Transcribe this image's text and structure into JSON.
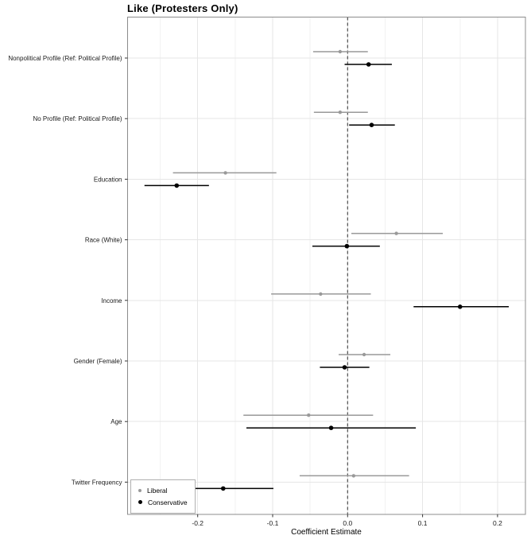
{
  "chart_data": {
    "type": "scatter",
    "subtype": "coefficient-dot-whisker-plot",
    "title": "Like (Protesters Only)",
    "xlabel": "Coefficient Estimate",
    "xlim": [
      -0.295,
      0.238
    ],
    "x_ticks": [
      -0.2,
      -0.1,
      0.0,
      0.1,
      0.2
    ],
    "x_tick_labels": [
      "-0.2",
      "-0.1",
      "0.0",
      "0.1",
      "0.2"
    ],
    "x_minor_ticks": [
      -0.25,
      -0.15,
      -0.05,
      0.05,
      0.15
    ],
    "reference_line_x": 0.0,
    "grid": "on",
    "legend_position": "inside-bottom-left",
    "categories": [
      "Nonpolitical Profile (Ref: Political Profile)",
      "No Profile (Ref: Political Profile)",
      "Education",
      "Race (White)",
      "Income",
      "Gender (Female)",
      "Age",
      "Twitter Frequency"
    ],
    "series": [
      {
        "name": "Liberal",
        "color": "#999999",
        "points": [
          {
            "category": "Nonpolitical Profile (Ref: Political Profile)",
            "estimate": -0.01,
            "ci_low": -0.046,
            "ci_high": 0.027
          },
          {
            "category": "No Profile (Ref: Political Profile)",
            "estimate": -0.01,
            "ci_low": -0.045,
            "ci_high": 0.027
          },
          {
            "category": "Education",
            "estimate": -0.163,
            "ci_low": -0.233,
            "ci_high": -0.095
          },
          {
            "category": "Race (White)",
            "estimate": 0.065,
            "ci_low": 0.005,
            "ci_high": 0.127
          },
          {
            "category": "Income",
            "estimate": -0.036,
            "ci_low": -0.102,
            "ci_high": 0.031
          },
          {
            "category": "Gender (Female)",
            "estimate": 0.022,
            "ci_low": -0.012,
            "ci_high": 0.057
          },
          {
            "category": "Age",
            "estimate": -0.052,
            "ci_low": -0.139,
            "ci_high": 0.034
          },
          {
            "category": "Twitter Frequency",
            "estimate": 0.008,
            "ci_low": -0.064,
            "ci_high": 0.082
          }
        ]
      },
      {
        "name": "Conservative",
        "color": "#000000",
        "points": [
          {
            "category": "Nonpolitical Profile (Ref: Political Profile)",
            "estimate": 0.028,
            "ci_low": -0.004,
            "ci_high": 0.059
          },
          {
            "category": "No Profile (Ref: Political Profile)",
            "estimate": 0.032,
            "ci_low": 0.002,
            "ci_high": 0.063
          },
          {
            "category": "Education",
            "estimate": -0.228,
            "ci_low": -0.271,
            "ci_high": -0.185
          },
          {
            "category": "Race (White)",
            "estimate": -0.001,
            "ci_low": -0.047,
            "ci_high": 0.043
          },
          {
            "category": "Income",
            "estimate": 0.15,
            "ci_low": 0.088,
            "ci_high": 0.215
          },
          {
            "category": "Gender (Female)",
            "estimate": -0.004,
            "ci_low": -0.037,
            "ci_high": 0.029
          },
          {
            "category": "Age",
            "estimate": -0.022,
            "ci_low": -0.135,
            "ci_high": 0.091
          },
          {
            "category": "Twitter Frequency",
            "estimate": -0.166,
            "ci_low": -0.233,
            "ci_high": -0.099
          }
        ]
      }
    ],
    "colors": {
      "panel_border": "#8c8c8c",
      "grid_major": "#e6e6e6",
      "grid_minor": "#f2f2f2",
      "reference_line": "#4d4d4d",
      "axis_text": "#1a1a1a",
      "tick_mark": "#333333"
    }
  }
}
